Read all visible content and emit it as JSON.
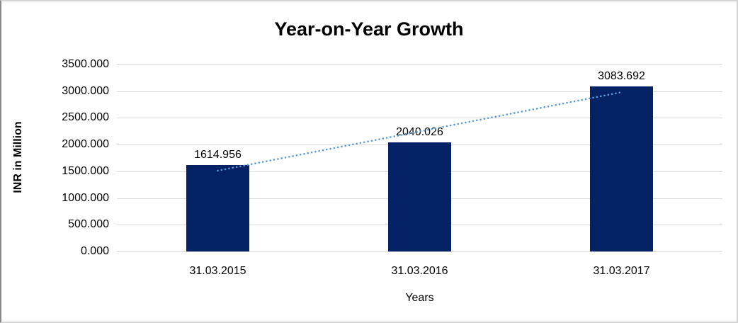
{
  "chart_data": {
    "type": "bar",
    "title": "Year-on-Year Growth",
    "xlabel": "Years",
    "ylabel": "INR in Million",
    "categories": [
      "31.03.2015",
      "31.03.2016",
      "31.03.2017"
    ],
    "values": [
      1614.956,
      2040.026,
      3083.692
    ],
    "value_labels": [
      "1614.956",
      "2040.026",
      "3083.692"
    ],
    "ylim": [
      0,
      3500
    ],
    "y_tick_step": 500,
    "y_tick_labels": [
      "0.000",
      "500.000",
      "1000.000",
      "1500.000",
      "2000.000",
      "2500.000",
      "3000.000",
      "3500.000"
    ],
    "grid": true,
    "legend": "none",
    "colors": {
      "bar_fill": "#052264",
      "trendline": "#5b9bd5",
      "gridline": "#d9d9d9",
      "text": "#000000"
    },
    "trendline": {
      "kind": "linear",
      "style": "dotted"
    }
  }
}
